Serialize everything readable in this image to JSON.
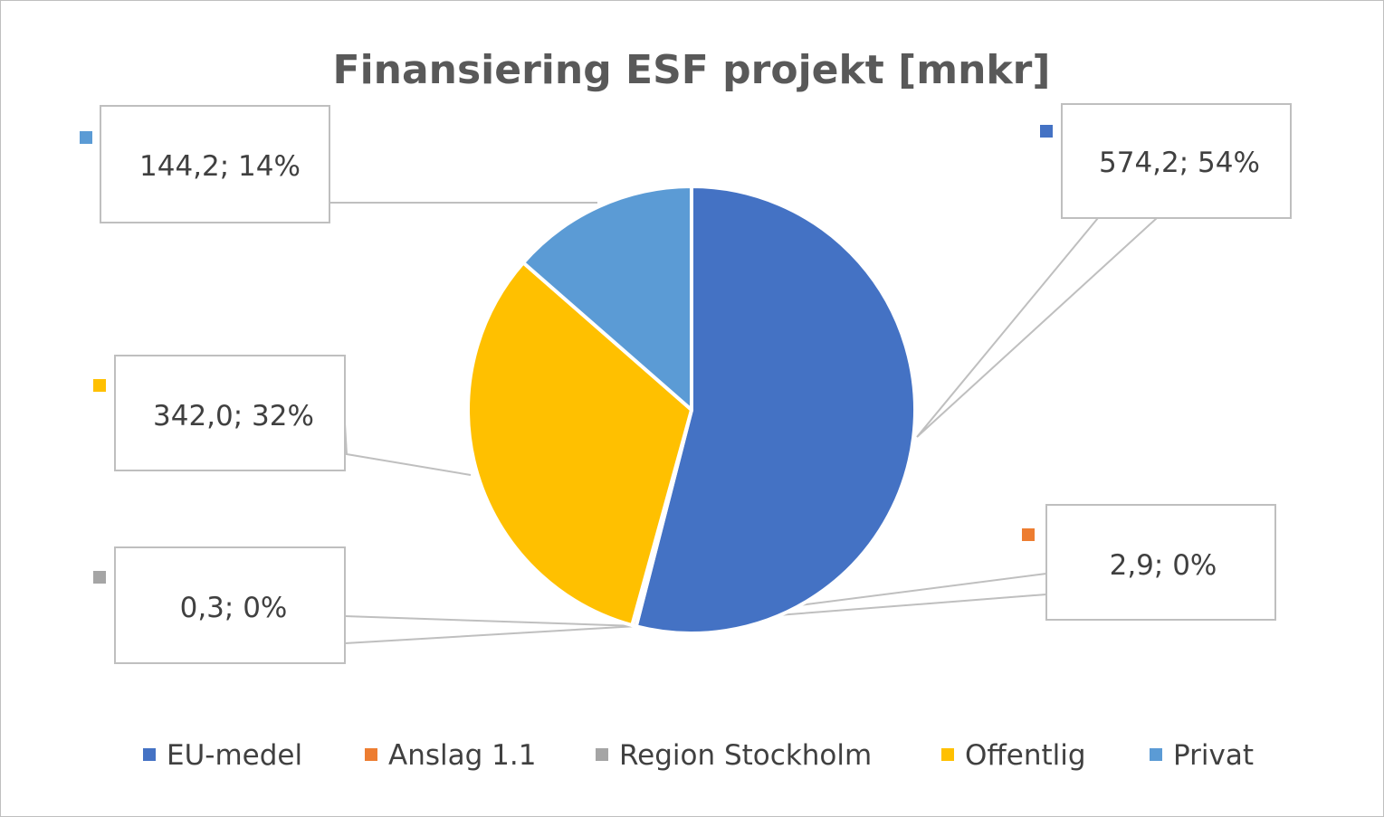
{
  "chart_data": {
    "type": "pie",
    "title": "Finansiering ESF projekt [mnkr]",
    "categories": [
      "EU-medel",
      "Anslag 1.1",
      "Region Stockholm",
      "Offentlig",
      "Privat"
    ],
    "values": [
      574.2,
      2.9,
      0.3,
      342.0,
      144.2
    ],
    "data_labels": [
      "574,2; 54%",
      "2,9; 0%",
      "0,3; 0%",
      "342,0; 32%",
      "144,2; 14%"
    ],
    "colors": [
      "#4472c4",
      "#ed7d31",
      "#a5a5a5",
      "#ffc000",
      "#5b9bd5"
    ],
    "legend_position": "bottom"
  }
}
